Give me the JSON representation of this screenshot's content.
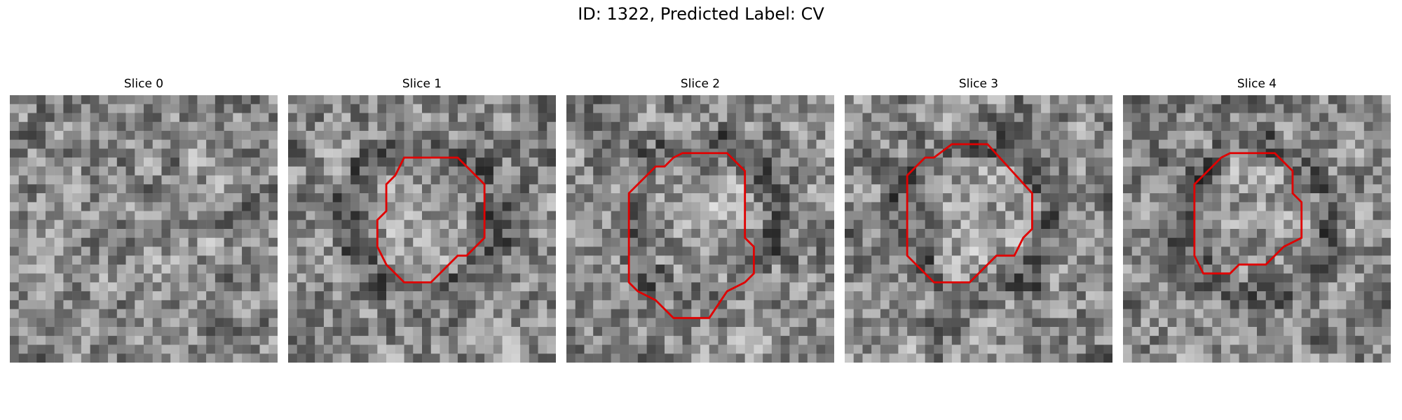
{
  "figure": {
    "title": "ID: 1322, Predicted Label: CV"
  },
  "panels": [
    {
      "title": "Slice 0",
      "seed": 11,
      "contour": null
    },
    {
      "title": "Slice 1",
      "seed": 23,
      "contour": [
        [
          14,
          7
        ],
        [
          19,
          7
        ],
        [
          22,
          10
        ],
        [
          22,
          16
        ],
        [
          20,
          18
        ],
        [
          19,
          18
        ],
        [
          16,
          21
        ],
        [
          13,
          21
        ],
        [
          11,
          19
        ],
        [
          10,
          17
        ],
        [
          10,
          14
        ],
        [
          11,
          13
        ],
        [
          11,
          10
        ],
        [
          12,
          9
        ],
        [
          13,
          7
        ]
      ]
    },
    {
      "title": "Slice 2",
      "seed": 37,
      "contour": [
        [
          13,
          6.5
        ],
        [
          18,
          6.5
        ],
        [
          20,
          8.5
        ],
        [
          20,
          16
        ],
        [
          21,
          17
        ],
        [
          21,
          20
        ],
        [
          20,
          21
        ],
        [
          18,
          22
        ],
        [
          16,
          25
        ],
        [
          12,
          25
        ],
        [
          10,
          23
        ],
        [
          8,
          22
        ],
        [
          7,
          21
        ],
        [
          7,
          11
        ],
        [
          10,
          8
        ],
        [
          11,
          8
        ],
        [
          12,
          7
        ]
      ]
    },
    {
      "title": "Slice 3",
      "seed": 41,
      "contour": [
        [
          12,
          5.5
        ],
        [
          16,
          5.5
        ],
        [
          21,
          11
        ],
        [
          21,
          15
        ],
        [
          20,
          16
        ],
        [
          19,
          18
        ],
        [
          17,
          18
        ],
        [
          14,
          21
        ],
        [
          10,
          21
        ],
        [
          8,
          19
        ],
        [
          7,
          18
        ],
        [
          7,
          9
        ],
        [
          9,
          7
        ],
        [
          10,
          7
        ]
      ]
    },
    {
      "title": "Slice 4",
      "seed": 53,
      "contour": [
        [
          12,
          6.5
        ],
        [
          17,
          6.5
        ],
        [
          19,
          8.5
        ],
        [
          19,
          11
        ],
        [
          20,
          12
        ],
        [
          20,
          16
        ],
        [
          18,
          17
        ],
        [
          17,
          18
        ],
        [
          16,
          19
        ],
        [
          13,
          19
        ],
        [
          12,
          20
        ],
        [
          9,
          20
        ],
        [
          9,
          20
        ],
        [
          8,
          18
        ],
        [
          8,
          10
        ],
        [
          9,
          9
        ],
        [
          11,
          7
        ]
      ]
    }
  ],
  "colors": {
    "contour": "#e00000"
  }
}
